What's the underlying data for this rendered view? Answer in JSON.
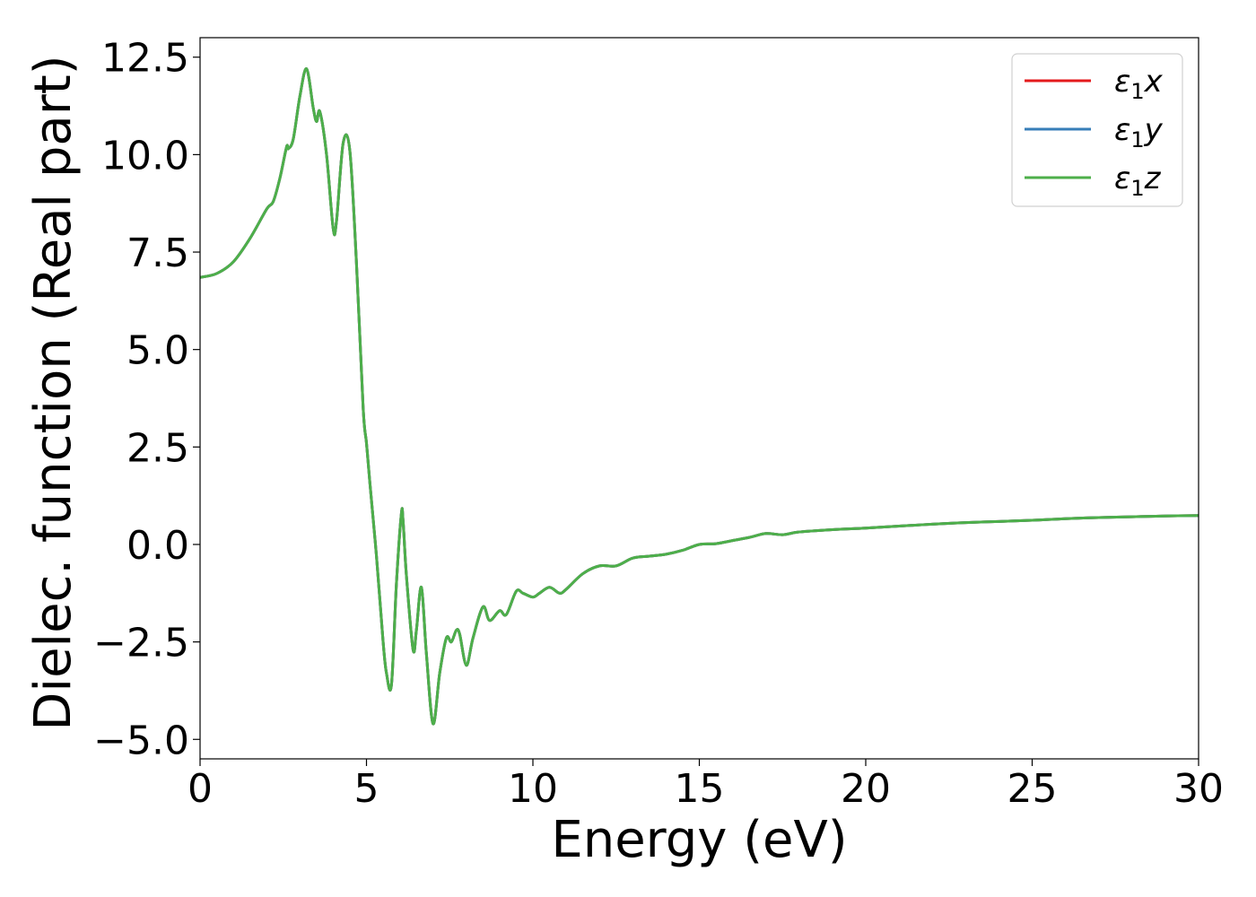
{
  "chart_data": {
    "type": "line",
    "title": "",
    "xlabel": "Energy (eV)",
    "ylabel": "Dielec. function (Real part)",
    "xlim": [
      0,
      30
    ],
    "ylim": [
      -5.5,
      13.0
    ],
    "x_ticks": [
      0,
      5,
      10,
      15,
      20,
      25,
      30
    ],
    "x_tick_labels": [
      "0",
      "5",
      "10",
      "15",
      "20",
      "25",
      "30"
    ],
    "y_ticks": [
      -5.0,
      -2.5,
      0.0,
      2.5,
      5.0,
      7.5,
      10.0,
      12.5
    ],
    "y_tick_labels": [
      "−5.0",
      "−2.5",
      "0.0",
      "2.5",
      "5.0",
      "7.5",
      "10.0",
      "12.5"
    ],
    "grid": false,
    "legend_position": "top-right",
    "x": [
      0,
      0.5,
      1.0,
      1.5,
      2.0,
      2.2,
      2.4,
      2.6,
      2.65,
      2.8,
      3.0,
      3.2,
      3.4,
      3.5,
      3.6,
      3.8,
      4.0,
      4.1,
      4.3,
      4.5,
      4.7,
      4.9,
      5.0,
      5.1,
      5.3,
      5.5,
      5.6,
      5.75,
      5.9,
      6.05,
      6.1,
      6.2,
      6.4,
      6.5,
      6.65,
      6.8,
      7.0,
      7.2,
      7.4,
      7.55,
      7.7,
      7.8,
      8.0,
      8.2,
      8.5,
      8.7,
      9.0,
      9.2,
      9.5,
      9.7,
      10.0,
      10.2,
      10.5,
      10.8,
      11.0,
      11.5,
      12.0,
      12.5,
      13.0,
      13.5,
      14.0,
      14.5,
      15.0,
      15.5,
      16.0,
      16.5,
      17.0,
      17.5,
      18.0,
      19.0,
      20.0,
      21.0,
      22.0,
      23.0,
      24.0,
      25.0,
      26.0,
      27.0,
      28.0,
      29.0,
      30.0
    ],
    "series": [
      {
        "name": "ε1x",
        "color": "#e41a1c",
        "values": [
          6.85,
          6.95,
          7.25,
          7.85,
          8.6,
          8.8,
          9.4,
          10.2,
          10.15,
          10.4,
          11.5,
          12.2,
          11.2,
          10.85,
          11.1,
          10.0,
          8.1,
          8.3,
          10.3,
          10.1,
          7.2,
          3.5,
          2.6,
          1.6,
          -0.3,
          -2.5,
          -3.3,
          -3.6,
          -1.0,
          0.8,
          0.6,
          -0.8,
          -2.7,
          -2.2,
          -1.1,
          -2.8,
          -4.6,
          -3.3,
          -2.4,
          -2.5,
          -2.2,
          -2.3,
          -3.1,
          -2.4,
          -1.6,
          -1.95,
          -1.7,
          -1.8,
          -1.2,
          -1.25,
          -1.35,
          -1.25,
          -1.1,
          -1.25,
          -1.15,
          -0.75,
          -0.55,
          -0.55,
          -0.35,
          -0.3,
          -0.25,
          -0.15,
          0.0,
          0.02,
          0.1,
          0.18,
          0.28,
          0.25,
          0.32,
          0.38,
          0.42,
          0.47,
          0.52,
          0.56,
          0.59,
          0.62,
          0.66,
          0.69,
          0.71,
          0.73,
          0.74
        ]
      },
      {
        "name": "ε1y",
        "color": "#377eb8",
        "values": [
          6.85,
          6.95,
          7.25,
          7.85,
          8.6,
          8.8,
          9.4,
          10.2,
          10.15,
          10.4,
          11.5,
          12.2,
          11.2,
          10.85,
          11.1,
          10.0,
          8.1,
          8.3,
          10.3,
          10.1,
          7.2,
          3.5,
          2.6,
          1.6,
          -0.3,
          -2.5,
          -3.3,
          -3.6,
          -1.0,
          0.8,
          0.6,
          -0.8,
          -2.7,
          -2.2,
          -1.1,
          -2.8,
          -4.6,
          -3.3,
          -2.4,
          -2.5,
          -2.2,
          -2.3,
          -3.1,
          -2.4,
          -1.6,
          -1.95,
          -1.7,
          -1.8,
          -1.2,
          -1.25,
          -1.35,
          -1.25,
          -1.1,
          -1.25,
          -1.15,
          -0.75,
          -0.55,
          -0.55,
          -0.35,
          -0.3,
          -0.25,
          -0.15,
          0.0,
          0.02,
          0.1,
          0.18,
          0.28,
          0.25,
          0.32,
          0.38,
          0.42,
          0.47,
          0.52,
          0.56,
          0.59,
          0.62,
          0.66,
          0.69,
          0.71,
          0.73,
          0.74
        ]
      },
      {
        "name": "ε1z",
        "color": "#4daf4a",
        "values": [
          6.85,
          6.95,
          7.25,
          7.85,
          8.6,
          8.8,
          9.4,
          10.2,
          10.15,
          10.4,
          11.5,
          12.2,
          11.2,
          10.85,
          11.1,
          10.0,
          8.1,
          8.3,
          10.3,
          10.1,
          7.2,
          3.5,
          2.6,
          1.6,
          -0.3,
          -2.5,
          -3.3,
          -3.6,
          -1.0,
          0.8,
          0.6,
          -0.8,
          -2.7,
          -2.2,
          -1.1,
          -2.8,
          -4.6,
          -3.3,
          -2.4,
          -2.5,
          -2.2,
          -2.3,
          -3.1,
          -2.4,
          -1.6,
          -1.95,
          -1.7,
          -1.8,
          -1.2,
          -1.25,
          -1.35,
          -1.25,
          -1.1,
          -1.25,
          -1.15,
          -0.75,
          -0.55,
          -0.55,
          -0.35,
          -0.3,
          -0.25,
          -0.15,
          0.0,
          0.02,
          0.1,
          0.18,
          0.28,
          0.25,
          0.32,
          0.38,
          0.42,
          0.47,
          0.52,
          0.56,
          0.59,
          0.62,
          0.66,
          0.69,
          0.71,
          0.73,
          0.74
        ]
      }
    ],
    "legend": {
      "entries": [
        {
          "symbol": "ε",
          "sub": "1",
          "axis": "x",
          "color": "#e41a1c"
        },
        {
          "symbol": "ε",
          "sub": "1",
          "axis": "y",
          "color": "#377eb8"
        },
        {
          "symbol": "ε",
          "sub": "1",
          "axis": "z",
          "color": "#4daf4a"
        }
      ]
    }
  }
}
